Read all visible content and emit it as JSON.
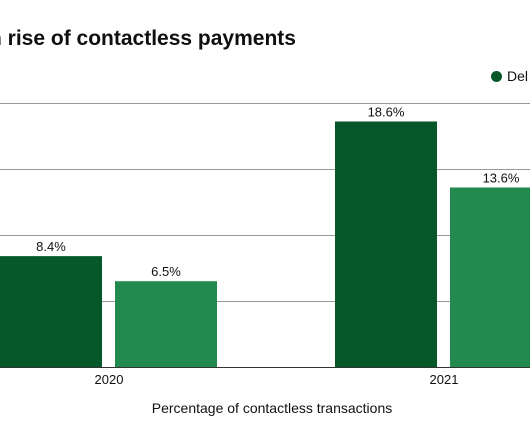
{
  "chart_data": {
    "type": "bar",
    "title": "n rise of contactless payments",
    "xlabel": "Percentage of contactless transactions",
    "ylabel": "",
    "categories": [
      "2020",
      "2021"
    ],
    "series": [
      {
        "name": "Del",
        "values": [
          8.4,
          18.6
        ],
        "labels": [
          "8.4%",
          "18.6%"
        ],
        "color": "#06582a"
      },
      {
        "name": "",
        "values": [
          6.5,
          13.6
        ],
        "labels": [
          "6.5%",
          "13.6%"
        ],
        "color": "#238a4f"
      }
    ],
    "ylim": [
      0,
      20
    ],
    "grid": true,
    "legend_position": "top-right",
    "colors": {
      "gridline": "#9a9a9a",
      "baseline": "#333333"
    }
  }
}
